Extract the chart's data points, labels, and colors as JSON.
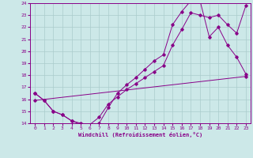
{
  "background_color": "#cce8e8",
  "line_color": "#880088",
  "grid_color": "#aacccc",
  "xlabel": "Windchill (Refroidissement éolien,°C)",
  "xlim": [
    -0.5,
    23.5
  ],
  "ylim": [
    14,
    24
  ],
  "xticks": [
    0,
    1,
    2,
    3,
    4,
    5,
    6,
    7,
    8,
    9,
    10,
    11,
    12,
    13,
    14,
    15,
    16,
    17,
    18,
    19,
    20,
    21,
    22,
    23
  ],
  "yticks": [
    14,
    15,
    16,
    17,
    18,
    19,
    20,
    21,
    22,
    23,
    24
  ],
  "line1_x": [
    0,
    1,
    2,
    3,
    4,
    5,
    6,
    7,
    8,
    9,
    10,
    11,
    12,
    13,
    14,
    15,
    16,
    17,
    18,
    19,
    20,
    21,
    22,
    23
  ],
  "line1_y": [
    16.5,
    15.9,
    15.0,
    14.7,
    14.2,
    13.9,
    13.7,
    14.0,
    15.3,
    16.5,
    17.2,
    17.8,
    18.5,
    19.2,
    19.7,
    22.2,
    23.3,
    24.2,
    24.2,
    21.2,
    22.0,
    20.5,
    19.5,
    18.1
  ],
  "line2_x": [
    0,
    1,
    2,
    3,
    4,
    5,
    6,
    7,
    8,
    9,
    10,
    11,
    12,
    13,
    14,
    15,
    16,
    17,
    18,
    19,
    20,
    21,
    22,
    23
  ],
  "line2_y": [
    16.5,
    15.9,
    15.0,
    14.7,
    14.2,
    14.0,
    13.9,
    14.5,
    15.6,
    16.2,
    16.8,
    17.3,
    17.8,
    18.3,
    18.8,
    20.5,
    21.8,
    23.2,
    23.0,
    22.8,
    23.0,
    22.2,
    21.5,
    23.8
  ],
  "line3_x": [
    0,
    23
  ],
  "line3_y": [
    15.9,
    17.9
  ]
}
